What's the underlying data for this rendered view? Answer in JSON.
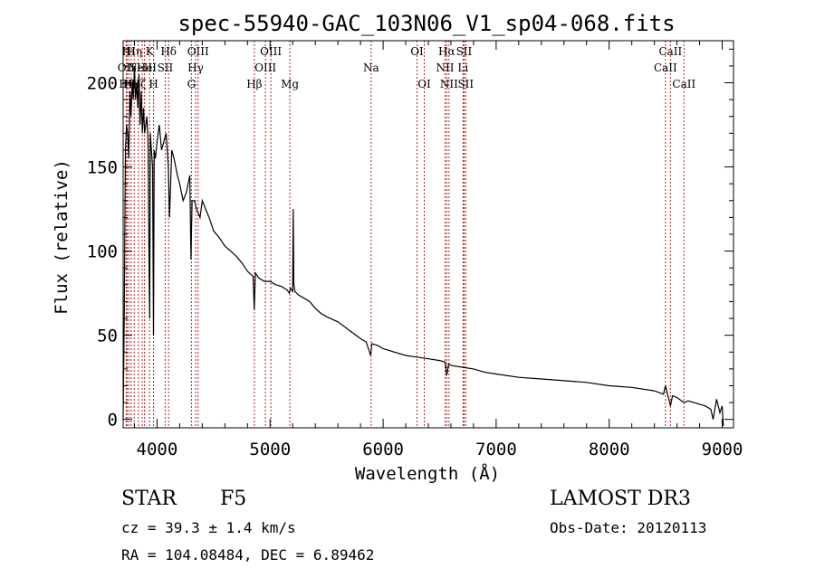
{
  "chart_data": {
    "type": "line",
    "title": "spec-55940-GAC_103N06_V1_sp04-068.fits",
    "xlabel": "Wavelength (Å)",
    "ylabel": "Flux (relative)",
    "xlim": [
      3700,
      9100
    ],
    "ylim": [
      -5,
      225
    ],
    "xticks": [
      4000,
      5000,
      6000,
      7000,
      8000,
      9000
    ],
    "yticks": [
      0,
      50,
      100,
      150,
      200
    ],
    "series": [
      {
        "name": "flux",
        "x": [
          3700,
          3710,
          3720,
          3730,
          3740,
          3750,
          3760,
          3770,
          3780,
          3790,
          3800,
          3810,
          3820,
          3830,
          3840,
          3850,
          3860,
          3870,
          3880,
          3890,
          3900,
          3910,
          3920,
          3930,
          3935,
          3940,
          3950,
          3960,
          3968,
          3975,
          3985,
          4000,
          4020,
          4040,
          4060,
          4080,
          4100,
          4110,
          4130,
          4150,
          4180,
          4200,
          4230,
          4260,
          4290,
          4300,
          4310,
          4330,
          4350,
          4380,
          4400,
          4430,
          4460,
          4500,
          4550,
          4600,
          4650,
          4700,
          4750,
          4800,
          4850,
          4860,
          4870,
          4880,
          4900,
          4950,
          5000,
          5050,
          5100,
          5150,
          5170,
          5180,
          5200,
          5205,
          5210,
          5220,
          5250,
          5300,
          5350,
          5400,
          5450,
          5500,
          5600,
          5700,
          5800,
          5850,
          5890,
          5900,
          5950,
          6000,
          6100,
          6200,
          6300,
          6400,
          6500,
          6550,
          6563,
          6580,
          6600,
          6700,
          6800,
          6900,
          7000,
          7200,
          7400,
          7600,
          7800,
          8000,
          8200,
          8400,
          8480,
          8498,
          8520,
          8542,
          8560,
          8600,
          8662,
          8700,
          8750,
          8800,
          8850,
          8900,
          8920,
          8950,
          8980,
          9000,
          9010
        ],
        "y": [
          0,
          60,
          160,
          175,
          170,
          155,
          195,
          180,
          200,
          190,
          210,
          190,
          200,
          185,
          205,
          175,
          195,
          170,
          185,
          170,
          175,
          180,
          165,
          85,
          60,
          170,
          160,
          150,
          50,
          160,
          155,
          165,
          175,
          160,
          165,
          170,
          150,
          120,
          160,
          155,
          145,
          140,
          130,
          135,
          145,
          95,
          130,
          130,
          125,
          120,
          130,
          125,
          120,
          112,
          108,
          103,
          100,
          97,
          93,
          88,
          85,
          65,
          87,
          86,
          84,
          82,
          82,
          80,
          79,
          77,
          75,
          78,
          76,
          125,
          80,
          76,
          74,
          72,
          70,
          66,
          63,
          61,
          58,
          53,
          48,
          46,
          38,
          45,
          44,
          42,
          40,
          38,
          37,
          36,
          35,
          34,
          26,
          33,
          32,
          31,
          30,
          28,
          27,
          25,
          24,
          23,
          22,
          20,
          19,
          17,
          15,
          20,
          14,
          8,
          14,
          13,
          10,
          11,
          10,
          9,
          8,
          6,
          0,
          12,
          4,
          8,
          -4
        ]
      }
    ],
    "lines": [
      {
        "wl": 3727,
        "label": "OII",
        "row": 1
      },
      {
        "wl": 3734,
        "label": "Hθ",
        "row": 2
      },
      {
        "wl": 3750,
        "label": "Hι",
        "row": 0
      },
      {
        "wl": 3771,
        "label": "Hκ",
        "row": 2
      },
      {
        "wl": 3798,
        "label": "Hη",
        "row": 0
      },
      {
        "wl": 3835,
        "label": "Hζ",
        "row": 2
      },
      {
        "wl": 3869,
        "label": "NeIII",
        "row": 1
      },
      {
        "wl": 3889,
        "label": "He",
        "row": 1
      },
      {
        "wl": 3934,
        "label": "K",
        "row": 0
      },
      {
        "wl": 3969,
        "label": "H",
        "row": 2
      },
      {
        "wl": 4072,
        "label": "SII",
        "row": 1
      },
      {
        "wl": 4102,
        "label": "Hδ",
        "row": 0
      },
      {
        "wl": 4304,
        "label": "G",
        "row": 2
      },
      {
        "wl": 4341,
        "label": "Hγ",
        "row": 1
      },
      {
        "wl": 4363,
        "label": "OIII",
        "row": 0
      },
      {
        "wl": 4861,
        "label": "Hβ",
        "row": 2
      },
      {
        "wl": 4959,
        "label": "OIII",
        "row": 1
      },
      {
        "wl": 5007,
        "label": "OIII",
        "row": 0
      },
      {
        "wl": 5175,
        "label": "Mg",
        "row": 2
      },
      {
        "wl": 5894,
        "label": "Na",
        "row": 1
      },
      {
        "wl": 6300,
        "label": "OI",
        "row": 0
      },
      {
        "wl": 6364,
        "label": "OI",
        "row": 2
      },
      {
        "wl": 6548,
        "label": "NII",
        "row": 1
      },
      {
        "wl": 6563,
        "label": "Hα",
        "row": 0
      },
      {
        "wl": 6583,
        "label": "NII",
        "row": 2
      },
      {
        "wl": 6707,
        "label": "Li",
        "row": 1
      },
      {
        "wl": 6716,
        "label": "SII",
        "row": 0
      },
      {
        "wl": 6731,
        "label": "SII",
        "row": 2
      },
      {
        "wl": 8498,
        "label": "CaII",
        "row": 1
      },
      {
        "wl": 8542,
        "label": "CaII",
        "row": 0
      },
      {
        "wl": 8662,
        "label": "CaII",
        "row": 2
      }
    ]
  },
  "info": {
    "class": "STAR",
    "subclass": "F5",
    "survey": "LAMOST DR3",
    "cz": "cz = 39.3 ± 1.4 km/s",
    "obs_date": "Obs-Date: 20120113",
    "radec": "RA = 104.08484, DEC =   6.89462"
  },
  "colors": {
    "line": "#000000",
    "marker": "#b22222",
    "axes": "#000000"
  }
}
